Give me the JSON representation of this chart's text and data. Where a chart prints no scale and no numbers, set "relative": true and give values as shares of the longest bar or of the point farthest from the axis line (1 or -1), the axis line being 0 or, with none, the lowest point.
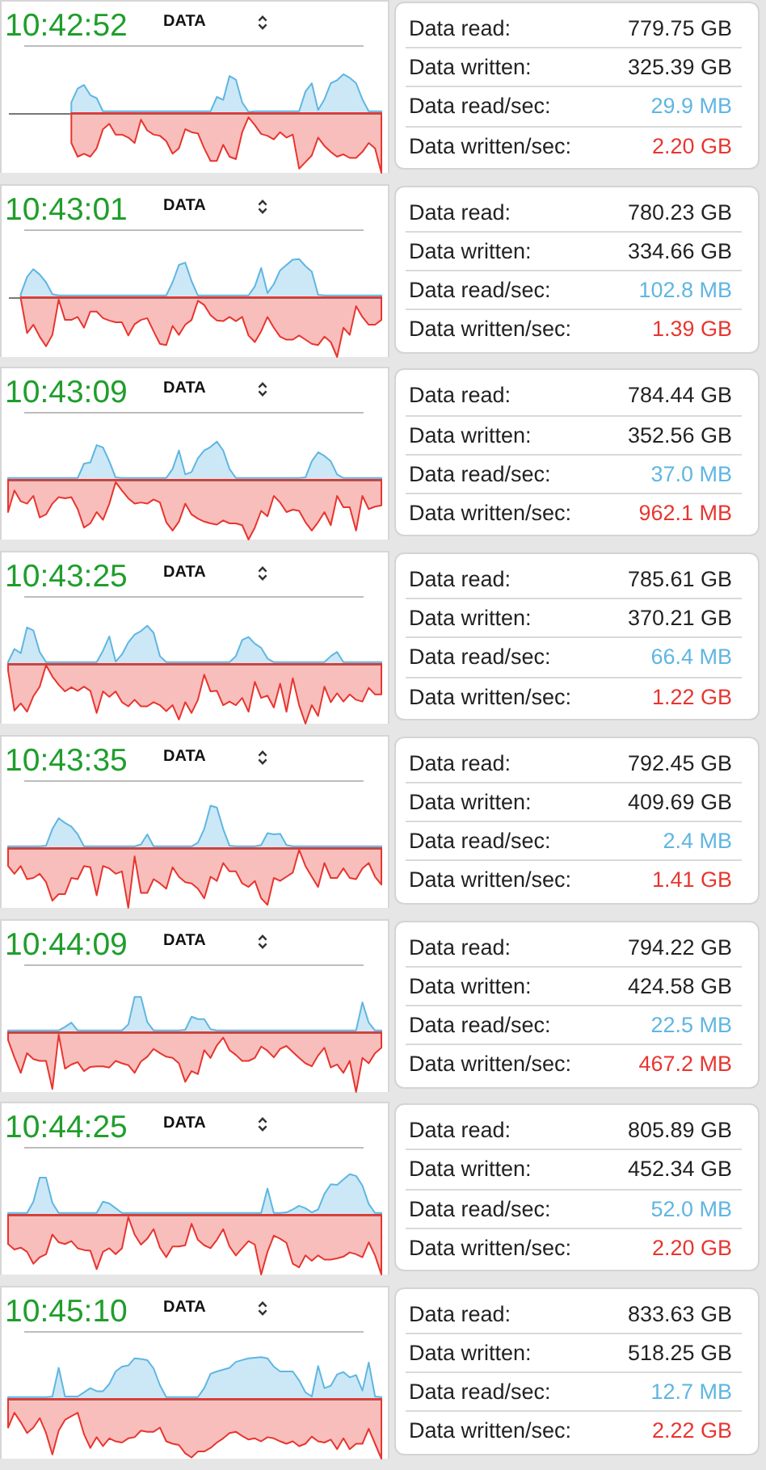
{
  "chart_data": [
    {
      "type": "area",
      "title": "10:42:52",
      "subtitle": "DATA",
      "relative": true,
      "categories": [
        null,
        null,
        null,
        null,
        null,
        null,
        null,
        null,
        null,
        null,
        null,
        null,
        null,
        null,
        null,
        null,
        null,
        null,
        null,
        null,
        null,
        null,
        null,
        null,
        null,
        null,
        null,
        null,
        null,
        null,
        null,
        null,
        null,
        null,
        null,
        null,
        null,
        null,
        null,
        null,
        null,
        null,
        null,
        null,
        null,
        null,
        null,
        null,
        null,
        null,
        null,
        null,
        null,
        null,
        null,
        null,
        null,
        null,
        null,
        null
      ],
      "series": [
        {
          "color": "#5fb6e2",
          "values": [
            null,
            null,
            null,
            null,
            null,
            null,
            null,
            null,
            null,
            null,
            0.18,
            0.41,
            0.47,
            0.3,
            0.25,
            0.03,
            0.03,
            0.03,
            0.03,
            0.03,
            0.03,
            0.03,
            0.03,
            0.03,
            0.03,
            0.03,
            0.03,
            0.03,
            0.03,
            0.03,
            0.03,
            0.03,
            0.03,
            0.27,
            0.22,
            0.62,
            0.56,
            0.18,
            0.02,
            0.03,
            0.03,
            0.03,
            0.03,
            0.03,
            0.03,
            0.03,
            0.03,
            0.36,
            0.5,
            0.05,
            0.23,
            0.5,
            0.55,
            0.65,
            0.59,
            0.5,
            0.23,
            0.03,
            0.03,
            0.03
          ]
        },
        {
          "color": "#e8352f",
          "values": [
            null,
            null,
            null,
            null,
            null,
            null,
            null,
            null,
            null,
            null,
            -0.5,
            -0.73,
            -0.68,
            -0.73,
            -0.59,
            -0.27,
            -0.18,
            -0.36,
            -0.36,
            -0.41,
            -0.5,
            -0.11,
            -0.29,
            -0.36,
            -0.38,
            -0.47,
            -0.68,
            -0.59,
            -0.27,
            -0.32,
            -0.34,
            -0.59,
            -0.8,
            -0.8,
            -0.53,
            -0.73,
            -0.77,
            -0.32,
            -0.07,
            -0.2,
            -0.35,
            -0.38,
            -0.44,
            -0.32,
            -0.41,
            -0.36,
            -0.93,
            -0.82,
            -0.71,
            -0.41,
            -0.55,
            -0.65,
            -0.73,
            -0.69,
            -0.75,
            -0.75,
            -0.65,
            -0.5,
            -0.59,
            -1
          ]
        }
      ]
    },
    {
      "type": "other",
      "annotations": [
        "Data read:",
        "779.75 GB",
        "Data written:",
        "325.39 GB",
        "Data read/sec:",
        "29.9 MB",
        "Data written/sec:",
        "2.20 GB"
      ]
    },
    {
      "type": "area",
      "title": "10:43:01",
      "subtitle": "DATA",
      "relative": true,
      "categories": [
        null,
        null,
        null,
        null,
        null,
        null,
        null,
        null,
        null,
        null,
        null,
        null,
        null,
        null,
        null,
        null,
        null,
        null,
        null,
        null,
        null,
        null,
        null,
        null,
        null,
        null,
        null,
        null,
        null,
        null,
        null,
        null,
        null,
        null,
        null,
        null,
        null,
        null,
        null,
        null,
        null,
        null,
        null,
        null,
        null,
        null,
        null,
        null,
        null,
        null,
        null,
        null,
        null,
        null,
        null,
        null,
        null,
        null,
        null,
        null
      ],
      "series": [
        {
          "color": "#5fb6e2",
          "values": [
            null,
            null,
            0.05,
            0.34,
            0.47,
            0.38,
            0.25,
            0.05,
            0.03,
            0.03,
            0.03,
            0.03,
            0.03,
            0.03,
            0.03,
            0.03,
            0.03,
            0.03,
            0.03,
            0.03,
            0.03,
            0.03,
            0.03,
            0.03,
            0.03,
            0.03,
            0.25,
            0.54,
            0.58,
            0.27,
            0.03,
            0.03,
            0.03,
            0.03,
            0.03,
            0.03,
            0.03,
            0.03,
            0.03,
            0.18,
            0.49,
            0.07,
            0.22,
            0.45,
            0.54,
            0.63,
            0.64,
            0.52,
            0.43,
            0.04,
            0.03,
            0.03,
            0.03,
            0.03,
            0.03,
            0.03,
            0.03,
            0.03,
            0.03,
            0.03
          ]
        },
        {
          "color": "#e8352f",
          "values": [
            null,
            null,
            -0.02,
            -0.6,
            -0.46,
            -0.66,
            -0.82,
            -0.63,
            -0.04,
            -0.38,
            -0.38,
            -0.33,
            -0.51,
            -0.24,
            -0.24,
            -0.35,
            -0.39,
            -0.42,
            -0.42,
            -0.64,
            -0.45,
            -0.38,
            -0.35,
            -0.57,
            -0.78,
            -0.8,
            -0.48,
            -0.63,
            -0.46,
            -0.38,
            -0.06,
            -0.13,
            -0.3,
            -0.39,
            -0.4,
            -0.33,
            -0.4,
            -0.33,
            -0.64,
            -0.75,
            -0.57,
            -0.33,
            -0.51,
            -0.66,
            -0.71,
            -0.71,
            -0.64,
            -0.71,
            -0.78,
            -0.8,
            -0.66,
            -0.75,
            -1,
            -0.51,
            -0.63,
            -0.15,
            -0.33,
            -0.46,
            -0.46,
            -0.38
          ]
        }
      ]
    },
    {
      "type": "other",
      "annotations": [
        "Data read:",
        "780.23 GB",
        "Data written:",
        "334.66 GB",
        "Data read/sec:",
        "102.8 MB",
        "Data written/sec:",
        "1.39 GB"
      ]
    },
    {
      "type": "area",
      "title": "10:43:09",
      "subtitle": "DATA",
      "relative": true,
      "categories": [
        null,
        null,
        null,
        null,
        null,
        null,
        null,
        null,
        null,
        null,
        null,
        null,
        null,
        null,
        null,
        null,
        null,
        null,
        null,
        null,
        null,
        null,
        null,
        null,
        null,
        null,
        null,
        null,
        null,
        null,
        null,
        null,
        null,
        null,
        null,
        null,
        null,
        null,
        null,
        null,
        null,
        null,
        null,
        null,
        null,
        null,
        null,
        null,
        null,
        null,
        null,
        null,
        null,
        null,
        null,
        null,
        null,
        null,
        null,
        null
      ],
      "series": [
        {
          "color": "#5fb6e2",
          "values": [
            0.03,
            0.03,
            0.03,
            0.03,
            0.03,
            0.03,
            0.03,
            0.03,
            0.03,
            0.03,
            0.03,
            0.03,
            0.27,
            0.29,
            0.58,
            0.54,
            0.31,
            0.04,
            0.03,
            0.03,
            0.03,
            0.03,
            0.03,
            0.03,
            0.03,
            0.03,
            0.18,
            0.49,
            0.09,
            0.13,
            0.36,
            0.49,
            0.55,
            0.64,
            0.49,
            0.18,
            0.03,
            0.03,
            0.03,
            0.03,
            0.03,
            0.03,
            0.03,
            0.03,
            0.03,
            0.03,
            0.03,
            0.04,
            0.31,
            0.46,
            0.4,
            0.31,
            0.09,
            0.03,
            0.03,
            0.03,
            0.03,
            0.03,
            0.03,
            0.03
          ]
        },
        {
          "color": "#e8352f",
          "values": [
            -0.54,
            -0.18,
            -0.36,
            -0.4,
            -0.27,
            -0.63,
            -0.58,
            -0.4,
            -0.29,
            -0.31,
            -0.29,
            -0.49,
            -0.8,
            -0.73,
            -0.54,
            -0.67,
            -0.4,
            -0.04,
            -0.18,
            -0.31,
            -0.4,
            -0.38,
            -0.4,
            -0.33,
            -0.38,
            -0.71,
            -0.85,
            -0.7,
            -0.4,
            -0.58,
            -0.65,
            -0.7,
            -0.73,
            -0.75,
            -0.68,
            -0.73,
            -0.73,
            -0.76,
            -1,
            -0.8,
            -0.52,
            -0.61,
            -0.27,
            -0.38,
            -0.54,
            -0.5,
            -0.52,
            -0.71,
            -0.85,
            -0.71,
            -0.54,
            -0.76,
            -0.27,
            -0.46,
            -0.46,
            -0.85,
            -0.27,
            -0.49,
            -0.45,
            -0.43
          ]
        }
      ]
    },
    {
      "type": "other",
      "annotations": [
        "Data read:",
        "784.44 GB",
        "Data written:",
        "352.56 GB",
        "Data read/sec:",
        "37.0 MB",
        "Data written/sec:",
        "962.1 MB"
      ]
    },
    {
      "type": "area",
      "title": "10:43:25",
      "subtitle": "DATA",
      "relative": true,
      "categories": [
        null,
        null,
        null,
        null,
        null,
        null,
        null,
        null,
        null,
        null,
        null,
        null,
        null,
        null,
        null,
        null,
        null,
        null,
        null,
        null,
        null,
        null,
        null,
        null,
        null,
        null,
        null,
        null,
        null,
        null,
        null,
        null,
        null,
        null,
        null,
        null,
        null,
        null,
        null,
        null,
        null,
        null,
        null,
        null,
        null,
        null,
        null,
        null,
        null,
        null,
        null,
        null,
        null,
        null,
        null,
        null,
        null,
        null,
        null,
        null
      ],
      "series": [
        {
          "color": "#5fb6e2",
          "values": [
            0.03,
            0.25,
            0.18,
            0.61,
            0.56,
            0.2,
            0.03,
            0.03,
            0.03,
            0.03,
            0.03,
            0.03,
            0.03,
            0.03,
            0.03,
            0.22,
            0.46,
            0.04,
            0.16,
            0.36,
            0.49,
            0.55,
            0.64,
            0.52,
            0.13,
            0.03,
            0.03,
            0.03,
            0.03,
            0.03,
            0.03,
            0.03,
            0.03,
            0.03,
            0.03,
            0.03,
            0.13,
            0.4,
            0.45,
            0.34,
            0.27,
            0.09,
            0.03,
            0.03,
            0.03,
            0.03,
            0.03,
            0.03,
            0.03,
            0.03,
            0.03,
            0.13,
            0.2,
            0.03,
            0.03,
            0.03,
            0.03,
            0.03,
            0.03,
            0.03
          ]
        },
        {
          "color": "#e8352f",
          "values": [
            -0.11,
            -0.78,
            -0.66,
            -0.8,
            -0.54,
            -0.38,
            -0.02,
            -0.21,
            -0.35,
            -0.46,
            -0.39,
            -0.45,
            -0.38,
            -0.45,
            -0.82,
            -0.46,
            -0.55,
            -0.46,
            -0.64,
            -0.71,
            -0.6,
            -0.71,
            -0.71,
            -0.64,
            -0.69,
            -0.79,
            -0.69,
            -0.93,
            -0.64,
            -0.82,
            -0.6,
            -0.18,
            -0.46,
            -0.45,
            -0.69,
            -0.63,
            -0.69,
            -0.57,
            -0.8,
            -0.3,
            -0.57,
            -0.53,
            -0.73,
            -0.33,
            -0.8,
            -0.24,
            -0.69,
            -1,
            -0.69,
            -0.87,
            -0.38,
            -0.64,
            -0.49,
            -0.63,
            -0.51,
            -0.6,
            -0.63,
            -0.4,
            -0.51,
            -0.51
          ]
        }
      ]
    },
    {
      "type": "other",
      "annotations": [
        "Data read:",
        "785.61 GB",
        "Data written:",
        "370.21 GB",
        "Data read/sec:",
        "66.4 MB",
        "Data written/sec:",
        "1.22 GB"
      ]
    },
    {
      "type": "area",
      "title": "10:43:35",
      "subtitle": "DATA",
      "relative": true,
      "categories": [
        null,
        null,
        null,
        null,
        null,
        null,
        null,
        null,
        null,
        null,
        null,
        null,
        null,
        null,
        null,
        null,
        null,
        null,
        null,
        null,
        null,
        null,
        null,
        null,
        null,
        null,
        null,
        null,
        null,
        null,
        null,
        null,
        null,
        null,
        null,
        null,
        null,
        null,
        null,
        null,
        null,
        null,
        null,
        null,
        null,
        null,
        null,
        null,
        null,
        null,
        null,
        null,
        null,
        null,
        null,
        null,
        null,
        null,
        null,
        null
      ],
      "series": [
        {
          "color": "#5fb6e2",
          "values": [
            0.03,
            0.03,
            0.03,
            0.03,
            0.03,
            0.03,
            0.04,
            0.32,
            0.5,
            0.42,
            0.36,
            0.23,
            0.03,
            0.03,
            0.03,
            0.03,
            0.03,
            0.03,
            0.03,
            0.03,
            0.03,
            0.06,
            0.23,
            0.03,
            0.03,
            0.03,
            0.03,
            0.03,
            0.03,
            0.03,
            0.09,
            0.32,
            0.71,
            0.68,
            0.32,
            0.04,
            0.03,
            0.03,
            0.03,
            0.03,
            0.05,
            0.25,
            0.23,
            0.24,
            0.05,
            0.03,
            0.03,
            0.03,
            0.03,
            0.03,
            0.03,
            0.03,
            0.03,
            0.03,
            0.03,
            0.03,
            0.03,
            0.03,
            0.03,
            0.03
          ]
        },
        {
          "color": "#e8352f",
          "values": [
            -0.3,
            -0.43,
            -0.3,
            -0.52,
            -0.5,
            -0.43,
            -0.57,
            -0.88,
            -0.77,
            -0.77,
            -0.5,
            -0.52,
            -0.3,
            -0.32,
            -0.79,
            -0.3,
            -0.34,
            -0.43,
            -0.39,
            -1,
            -0.14,
            -0.75,
            -0.75,
            -0.52,
            -0.59,
            -0.68,
            -0.32,
            -0.48,
            -0.57,
            -0.59,
            -0.68,
            -0.84,
            -0.48,
            -0.55,
            -0.25,
            -0.39,
            -0.39,
            -0.59,
            -0.65,
            -0.55,
            -0.84,
            -0.95,
            -0.5,
            -0.55,
            -0.48,
            -0.41,
            -0.03,
            -0.3,
            -0.48,
            -0.65,
            -0.25,
            -0.5,
            -0.5,
            -0.34,
            -0.5,
            -0.52,
            -0.34,
            -0.25,
            -0.48,
            -0.61
          ]
        }
      ]
    },
    {
      "type": "other",
      "annotations": [
        "Data read:",
        "792.45 GB",
        "Data written:",
        "409.69 GB",
        "Data read/sec:",
        "2.4 MB",
        "Data written/sec:",
        "1.41 GB"
      ]
    },
    {
      "type": "area",
      "title": "10:44:09",
      "subtitle": "DATA",
      "relative": true,
      "categories": [
        null,
        null,
        null,
        null,
        null,
        null,
        null,
        null,
        null,
        null,
        null,
        null,
        null,
        null,
        null,
        null,
        null,
        null,
        null,
        null,
        null,
        null,
        null,
        null,
        null,
        null,
        null,
        null,
        null,
        null,
        null,
        null,
        null,
        null,
        null,
        null,
        null,
        null,
        null,
        null,
        null,
        null,
        null,
        null,
        null,
        null,
        null,
        null,
        null,
        null,
        null,
        null,
        null,
        null,
        null,
        null,
        null,
        null,
        null,
        null
      ],
      "series": [
        {
          "color": "#5fb6e2",
          "values": [
            0.03,
            0.03,
            0.03,
            0.03,
            0.03,
            0.03,
            0.03,
            0.03,
            0.03,
            0.09,
            0.16,
            0.03,
            0.03,
            0.03,
            0.03,
            0.03,
            0.03,
            0.03,
            0.03,
            0.13,
            0.59,
            0.59,
            0.17,
            0.03,
            0.03,
            0.03,
            0.03,
            0.03,
            0.04,
            0.26,
            0.22,
            0.22,
            0.05,
            0.03,
            0.03,
            0.03,
            0.03,
            0.03,
            0.03,
            0.03,
            0.03,
            0.03,
            0.03,
            0.03,
            0.03,
            0.03,
            0.03,
            0.03,
            0.03,
            0.03,
            0.03,
            0.03,
            0.03,
            0.03,
            0.03,
            0.03,
            0.5,
            0.16,
            0.03,
            0.03
          ]
        },
        {
          "color": "#e8352f",
          "values": [
            -0.13,
            -0.42,
            -0.68,
            -0.35,
            -0.45,
            -0.48,
            -0.48,
            -0.95,
            -0.04,
            -0.61,
            -0.54,
            -0.5,
            -0.65,
            -0.58,
            -0.57,
            -0.57,
            -0.59,
            -0.48,
            -0.52,
            -0.55,
            -0.68,
            -0.49,
            -0.41,
            -0.28,
            -0.35,
            -0.41,
            -0.43,
            -0.52,
            -0.83,
            -0.65,
            -0.7,
            -0.3,
            -0.43,
            -0.22,
            -0.09,
            -0.3,
            -0.38,
            -0.48,
            -0.48,
            -0.43,
            -0.24,
            -0.31,
            -0.42,
            -0.28,
            -0.23,
            -0.33,
            -0.43,
            -0.52,
            -0.57,
            -0.39,
            -0.26,
            -0.59,
            -0.54,
            -0.68,
            -0.48,
            -1,
            -0.43,
            -0.52,
            -0.35,
            -0.26
          ]
        }
      ]
    },
    {
      "type": "other",
      "annotations": [
        "Data read:",
        "794.22 GB",
        "Data written:",
        "424.58 GB",
        "Data read/sec:",
        "22.5 MB",
        "Data written/sec:",
        "467.2 MB"
      ]
    },
    {
      "type": "area",
      "title": "10:44:25",
      "subtitle": "DATA",
      "relative": true,
      "categories": [
        null,
        null,
        null,
        null,
        null,
        null,
        null,
        null,
        null,
        null,
        null,
        null,
        null,
        null,
        null,
        null,
        null,
        null,
        null,
        null,
        null,
        null,
        null,
        null,
        null,
        null,
        null,
        null,
        null,
        null,
        null,
        null,
        null,
        null,
        null,
        null,
        null,
        null,
        null,
        null,
        null,
        null,
        null,
        null,
        null,
        null,
        null,
        null,
        null,
        null,
        null,
        null,
        null,
        null,
        null,
        null,
        null,
        null,
        null,
        null
      ],
      "series": [
        {
          "color": "#5fb6e2",
          "values": [
            0.03,
            0.03,
            0.03,
            0.03,
            0.22,
            0.62,
            0.62,
            0.2,
            0.03,
            0.03,
            0.03,
            0.03,
            0.03,
            0.03,
            0.03,
            0.22,
            0.19,
            0.11,
            0.03,
            0.03,
            0.03,
            0.03,
            0.03,
            0.03,
            0.03,
            0.03,
            0.03,
            0.03,
            0.03,
            0.03,
            0.03,
            0.03,
            0.03,
            0.03,
            0.03,
            0.03,
            0.03,
            0.03,
            0.03,
            0.03,
            0.03,
            0.44,
            0.03,
            0.03,
            0.04,
            0.09,
            0.15,
            0.11,
            0.04,
            0.09,
            0.35,
            0.51,
            0.5,
            0.59,
            0.68,
            0.65,
            0.49,
            0.18,
            0.03,
            0.03
          ]
        },
        {
          "color": "#e8352f",
          "values": [
            -0.49,
            -0.58,
            -0.55,
            -0.62,
            -0.82,
            -0.71,
            -0.66,
            -0.33,
            -0.46,
            -0.49,
            -0.44,
            -0.56,
            -0.59,
            -0.6,
            -0.91,
            -0.62,
            -0.56,
            -0.66,
            -0.56,
            -0.04,
            -0.33,
            -0.5,
            -0.4,
            -0.24,
            -0.55,
            -0.71,
            -0.53,
            -0.53,
            -0.51,
            -0.15,
            -0.42,
            -0.51,
            -0.56,
            -0.42,
            -0.24,
            -0.53,
            -0.68,
            -0.56,
            -0.44,
            -0.5,
            -1,
            -0.62,
            -0.35,
            -0.4,
            -0.47,
            -0.82,
            -0.88,
            -0.68,
            -0.77,
            -0.68,
            -0.75,
            -0.75,
            -0.73,
            -0.7,
            -0.63,
            -0.66,
            -0.71,
            -0.46,
            -0.68,
            -1
          ]
        }
      ]
    },
    {
      "type": "other",
      "annotations": [
        "Data read:",
        "805.89 GB",
        "Data written:",
        "452.34 GB",
        "Data read/sec:",
        "52.0 MB",
        "Data written/sec:",
        "2.20 GB"
      ]
    },
    {
      "type": "area",
      "title": "10:45:10",
      "subtitle": "DATA",
      "relative": true,
      "categories": [
        null,
        null,
        null,
        null,
        null,
        null,
        null,
        null,
        null,
        null,
        null,
        null,
        null,
        null,
        null,
        null,
        null,
        null,
        null,
        null,
        null,
        null,
        null,
        null,
        null,
        null,
        null,
        null,
        null,
        null,
        null,
        null,
        null,
        null,
        null,
        null,
        null,
        null,
        null,
        null,
        null,
        null,
        null,
        null,
        null,
        null,
        null,
        null,
        null,
        null,
        null,
        null,
        null,
        null,
        null,
        null,
        null,
        null,
        null,
        null
      ],
      "series": [
        {
          "color": "#5fb6e2",
          "values": [
            0.03,
            0.03,
            0.03,
            0.03,
            0.03,
            0.03,
            0.03,
            0.04,
            0.52,
            0.04,
            0.04,
            0.04,
            0.11,
            0.18,
            0.13,
            0.13,
            0.25,
            0.46,
            0.54,
            0.56,
            0.68,
            0.67,
            0.65,
            0.51,
            0.23,
            0.03,
            0.03,
            0.03,
            0.03,
            0.03,
            0.03,
            0.18,
            0.42,
            0.46,
            0.49,
            0.52,
            0.62,
            0.65,
            0.68,
            0.69,
            0.7,
            0.68,
            0.54,
            0.46,
            0.46,
            0.46,
            0.31,
            0.11,
            0.04,
            0.55,
            0.18,
            0.22,
            0.41,
            0.45,
            0.36,
            0.4,
            0.14,
            0.61,
            0.04,
            0.03
          ]
        },
        {
          "color": "#e8352f",
          "values": [
            -0.48,
            -0.23,
            -0.39,
            -0.57,
            -0.48,
            -0.32,
            -0.57,
            -0.93,
            -0.53,
            -0.35,
            -0.29,
            -0.23,
            -0.59,
            -0.82,
            -0.64,
            -0.79,
            -0.66,
            -0.71,
            -0.73,
            -0.66,
            -0.64,
            -0.53,
            -0.55,
            -0.55,
            -0.48,
            -0.71,
            -0.75,
            -0.77,
            -0.91,
            -0.98,
            -0.88,
            -0.88,
            -0.82,
            -0.73,
            -0.66,
            -0.57,
            -0.55,
            -0.62,
            -0.68,
            -0.66,
            -0.71,
            -0.64,
            -0.66,
            -0.71,
            -0.75,
            -0.71,
            -0.79,
            -0.75,
            -0.63,
            -0.71,
            -0.73,
            -0.68,
            -0.84,
            -0.66,
            -0.84,
            -0.75,
            -0.75,
            -0.5,
            -0.75,
            -1
          ]
        }
      ]
    },
    {
      "type": "other",
      "annotations": [
        "Data read:",
        "833.63 GB",
        "Data written:",
        "518.25 GB",
        "Data read/sec:",
        "12.7 MB",
        "Data written/sec:",
        "2.22 GB"
      ]
    }
  ]
}
